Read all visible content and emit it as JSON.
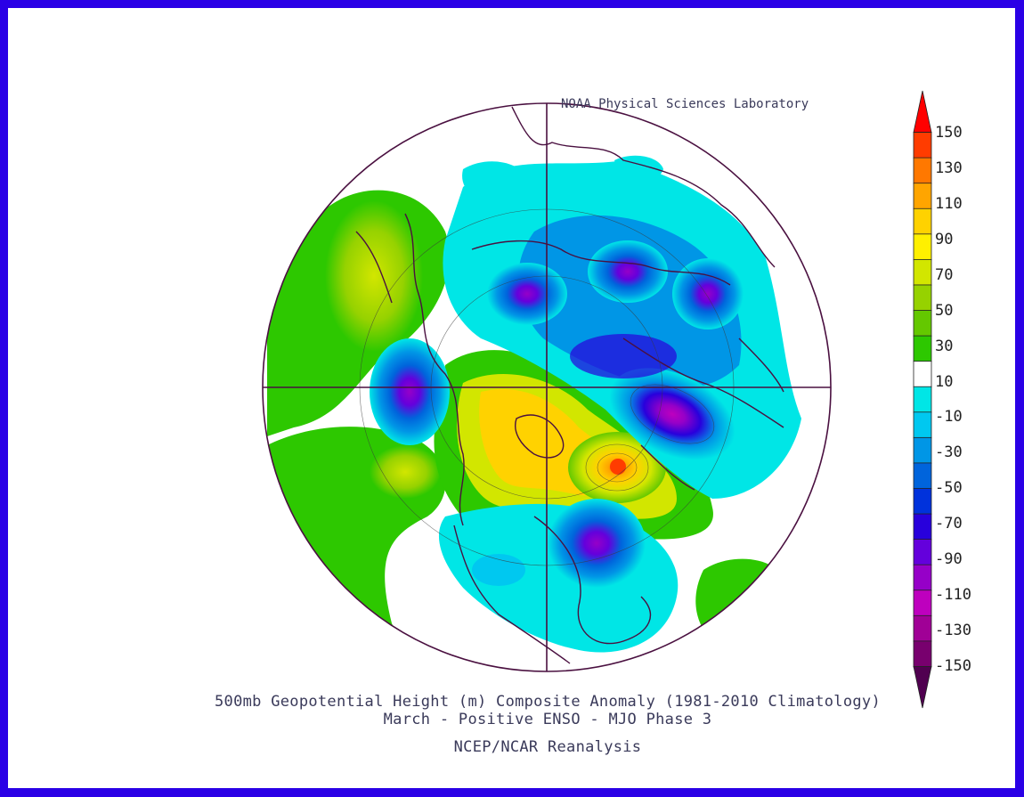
{
  "credit": "NOAA Physical Sciences Laboratory",
  "title_line1": "500mb Geopotential Height (m) Composite Anomaly (1981-2010 Climatology)",
  "title_line2": "March - Positive ENSO - MJO Phase 3",
  "source": "NCEP/NCAR Reanalysis",
  "colorbar": {
    "tick_labels": [
      "150",
      "130",
      "110",
      "90",
      "70",
      "50",
      "30",
      "10",
      "-10",
      "-30",
      "-50",
      "-70",
      "-90",
      "-110",
      "-130",
      "-150"
    ],
    "colors": [
      "#ff0000",
      "#ff3c00",
      "#ff7800",
      "#ffa500",
      "#ffd200",
      "#fff000",
      "#d2e600",
      "#96d200",
      "#64c800",
      "#2dc800",
      "#ffffff",
      "#00e6e6",
      "#00c8f0",
      "#0096e6",
      "#0064dc",
      "#0032dc",
      "#2800dc",
      "#6400dc",
      "#9600c8",
      "#be00be",
      "#a00096",
      "#78006e",
      "#500050"
    ]
  },
  "map": {
    "projection": "north-polar-stereographic",
    "anomalies": [
      {
        "label": "max",
        "value": 150,
        "region": "North Atlantic / Greenland"
      },
      {
        "label": "min",
        "value": -120,
        "region": "Northwest Pacific"
      },
      {
        "label": "min",
        "value": -100,
        "region": "Eastern United States"
      },
      {
        "label": "min",
        "value": -100,
        "region": "Northern Europe"
      },
      {
        "label": "min",
        "value": -70,
        "region": "Western Siberia"
      },
      {
        "label": "max",
        "value": 60,
        "region": "North Africa / Mediterranean"
      },
      {
        "label": "max",
        "value": 50,
        "region": "Eastern Pacific"
      }
    ]
  }
}
